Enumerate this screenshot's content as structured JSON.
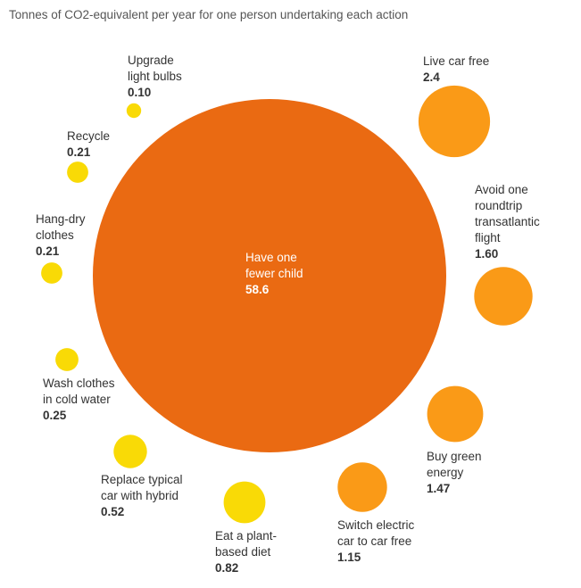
{
  "chart_data": {
    "type": "bubble",
    "title": "Tonnes of CO2-equivalent per year for one person undertaking each action",
    "unit": "Tonnes of CO2-equivalent per year",
    "series": [
      {
        "label_lines": [
          "Have one",
          "fewer child"
        ],
        "value": 58.6,
        "value_label": "58.6",
        "color": "#EA6A12"
      },
      {
        "label_lines": [
          "Live car free"
        ],
        "value": 2.4,
        "value_label": "2.4",
        "color": "#FA9A17"
      },
      {
        "label_lines": [
          "Avoid one",
          "roundtrip",
          "transatlantic",
          "flight"
        ],
        "value": 1.6,
        "value_label": "1.60",
        "color": "#FA9A17"
      },
      {
        "label_lines": [
          "Buy green",
          "energy"
        ],
        "value": 1.47,
        "value_label": "1.47",
        "color": "#FA9A17"
      },
      {
        "label_lines": [
          "Switch electric",
          "car to car free"
        ],
        "value": 1.15,
        "value_label": "1.15",
        "color": "#FA9A17"
      },
      {
        "label_lines": [
          "Eat a plant-",
          "based diet"
        ],
        "value": 0.82,
        "value_label": "0.82",
        "color": "#F9DA06"
      },
      {
        "label_lines": [
          "Replace typical",
          "car with hybrid"
        ],
        "value": 0.52,
        "value_label": "0.52",
        "color": "#F9DA06"
      },
      {
        "label_lines": [
          "Wash clothes",
          "in cold water"
        ],
        "value": 0.25,
        "value_label": "0.25",
        "color": "#F9DA06"
      },
      {
        "label_lines": [
          "Hang-dry",
          "clothes"
        ],
        "value": 0.21,
        "value_label": "0.21",
        "color": "#F9DA06"
      },
      {
        "label_lines": [
          "Recycle"
        ],
        "value": 0.21,
        "value_label": "0.21",
        "color": "#F9DA06"
      },
      {
        "label_lines": [
          "Upgrade",
          "light bulbs"
        ],
        "value": 0.1,
        "value_label": "0.10",
        "color": "#F9DA06"
      }
    ]
  }
}
